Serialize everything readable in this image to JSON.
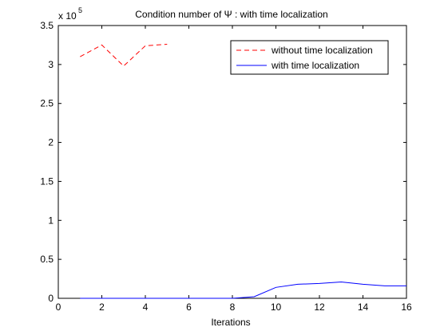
{
  "chart_data": {
    "type": "line",
    "title": "Condition number of Ψ : with time localization",
    "xlabel": "Iterations",
    "ylabel": "",
    "y_exponent_label": "x 10",
    "y_exponent_power": "5",
    "xlim": [
      0,
      16
    ],
    "ylim": [
      0,
      3.5
    ],
    "y_scale_factor": 100000,
    "xticks": [
      0,
      2,
      4,
      6,
      8,
      10,
      12,
      14,
      16
    ],
    "xtick_labels": [
      "0",
      "2",
      "4",
      "6",
      "8",
      "10",
      "12",
      "14",
      "16"
    ],
    "yticks": [
      0,
      0.5,
      1,
      1.5,
      2,
      2.5,
      3,
      3.5
    ],
    "ytick_labels": [
      "0",
      "0.5",
      "1",
      "1.5",
      "2",
      "2.5",
      "3",
      "3.5"
    ],
    "grid": false,
    "legend_position": "top-right",
    "series": [
      {
        "name": "without time localization",
        "color": "#ff0000",
        "style": "dashed",
        "x": [
          1,
          2,
          3,
          4,
          5
        ],
        "y": [
          3.1,
          3.25,
          2.98,
          3.24,
          3.26
        ]
      },
      {
        "name": "with time localization",
        "color": "#0000ff",
        "style": "solid",
        "x": [
          1,
          2,
          3,
          4,
          5,
          6,
          7,
          8,
          9,
          10,
          11,
          12,
          13,
          14,
          15,
          16
        ],
        "y": [
          0.0,
          0.0,
          0.0,
          0.0,
          0.0,
          0.0,
          0.0,
          0.0,
          0.02,
          0.14,
          0.18,
          0.19,
          0.21,
          0.18,
          0.16,
          0.16
        ]
      }
    ]
  }
}
